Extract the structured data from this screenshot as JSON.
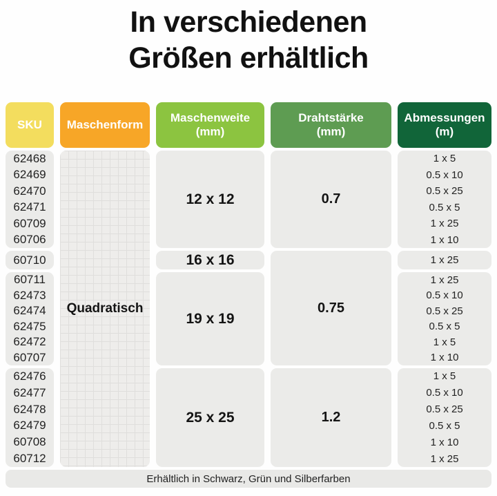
{
  "title": {
    "line1": "In verschiedenen",
    "line2": "Größen erhältlich"
  },
  "colors": {
    "sku_header": "#f3dd5e",
    "maschenform_header": "#f7a627",
    "maschenweite_header": "#8cc440",
    "drahtstaerke_header": "#5e9c52",
    "abmessungen_header": "#116539",
    "cell_background": "#ebebe9"
  },
  "table": {
    "headers": [
      {
        "label": "SKU",
        "sub": ""
      },
      {
        "label": "Maschenform",
        "sub": ""
      },
      {
        "label": "Maschenweite",
        "sub": "(mm)"
      },
      {
        "label": "Drahtstärke",
        "sub": "(mm)"
      },
      {
        "label": "Abmessungen",
        "sub": "(m)"
      }
    ],
    "maschenform_value": "Quadratisch",
    "groups": [
      {
        "skus": [
          "62468",
          "62469",
          "62470",
          "62471",
          "60709",
          "60706"
        ],
        "maschenweite": "12 x 12",
        "abmessungen": [
          "1 x 5",
          "0.5 x 10",
          "0.5 x 25",
          "0.5 x 5",
          "1 x 25",
          "1 x 10"
        ]
      },
      {
        "skus": [
          "60710"
        ],
        "maschenweite": "16 x 16",
        "abmessungen": [
          "1 x 25"
        ]
      },
      {
        "skus": [
          "60711",
          "62473",
          "62474",
          "62475",
          "62472",
          "60707"
        ],
        "maschenweite": "19 x 19",
        "abmessungen": [
          "1 x 25",
          "0.5 x 10",
          "0.5 x 25",
          "0.5 x 5",
          "1 x 5",
          "1 x 10"
        ]
      },
      {
        "skus": [
          "62476",
          "62477",
          "62478",
          "62479",
          "60708",
          "60712"
        ],
        "maschenweite": "25 x 25",
        "abmessungen": [
          "1 x 5",
          "0.5 x 10",
          "0.5 x 25",
          "0.5 x 5",
          "1 x 10",
          "1 x 25"
        ]
      }
    ],
    "drahtstaerke": [
      {
        "value": "0.7"
      },
      {
        "value": "0.75"
      },
      {
        "value": "1.2"
      }
    ]
  },
  "footer": "Erhältlich in Schwarz, Grün und Silberfarben"
}
